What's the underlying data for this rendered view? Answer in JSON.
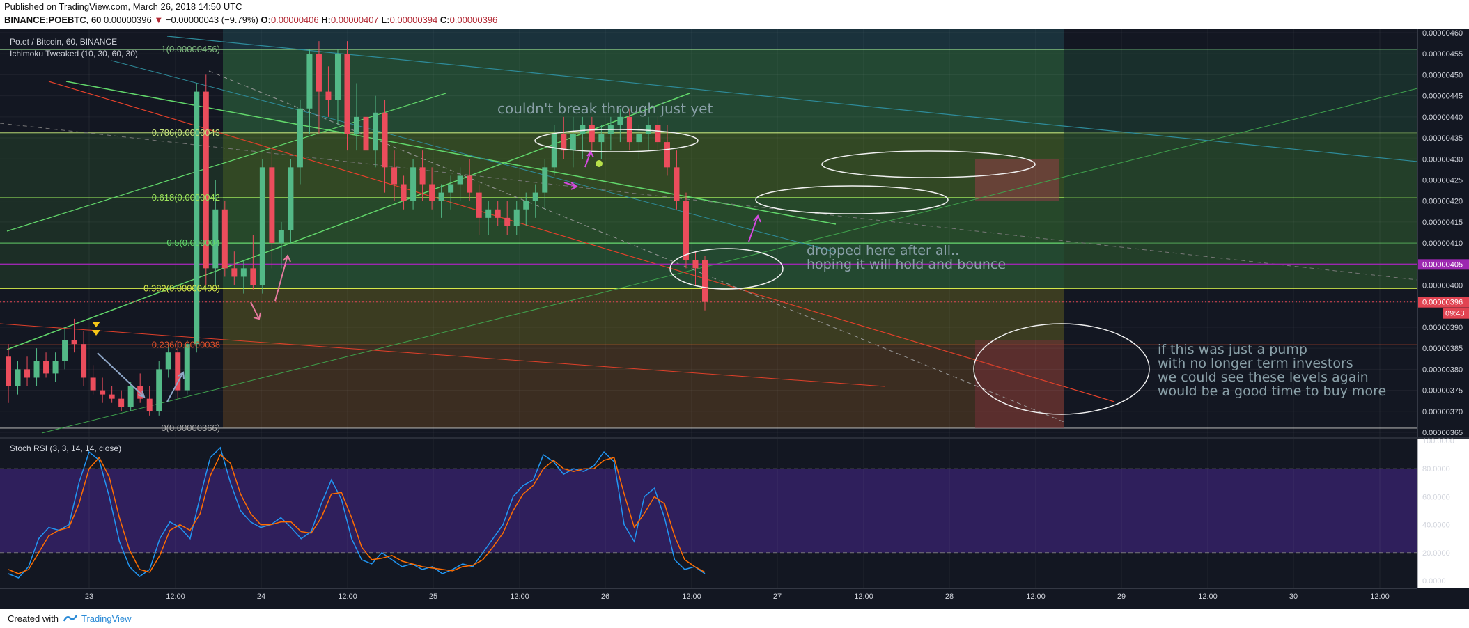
{
  "header": {
    "published": "Published on TradingView.com, March 26, 2018 14:50 UTC",
    "symbol": "BINANCE:POEBTC, 60",
    "last": "0.00000396",
    "change_arrow": "▼",
    "change": "−0.00000043 (−9.79%)",
    "open_label": "O:",
    "open": "0.00000406",
    "high_label": "H:",
    "high": "0.00000407",
    "low_label": "L:",
    "low": "0.00000394",
    "close_label": "C:",
    "close": "0.00000396"
  },
  "main_pane": {
    "title": "Po.et / Bitcoin, 60, BINANCE",
    "indicator": "Ichimoku Tweaked (10, 30, 60, 30)",
    "price_ticks": [
      "0.00000460",
      "0.00000455",
      "0.00000450",
      "0.00000445",
      "0.00000440",
      "0.00000435",
      "0.00000430",
      "0.00000425",
      "0.00000420",
      "0.00000415",
      "0.00000410",
      "0.00000405",
      "0.00000400",
      "0.00000396",
      "0.00000390",
      "0.00000385",
      "0.00000380",
      "0.00000375",
      "0.00000370",
      "0.00000365"
    ],
    "price_tick_values": [
      460,
      455,
      450,
      445,
      440,
      435,
      430,
      425,
      420,
      415,
      410,
      405,
      400,
      396,
      390,
      385,
      380,
      375,
      370,
      365
    ],
    "current_price_label": "0.00000396",
    "countdown_label": "09:43",
    "level_label_405": "0.00000405",
    "fib_levels": [
      {
        "label": "1(0.00000456)",
        "value": 456,
        "color": "#7fb97f"
      },
      {
        "label": "0.786(0.0000043",
        "value": 436.2,
        "color": "#c2e07a"
      },
      {
        "label": "0.618(0.0000042",
        "value": 420.8,
        "color": "#9be35b"
      },
      {
        "label": "0.5(0.000004",
        "value": 410,
        "color": "#62d86b"
      },
      {
        "label": "0.382(0.00000400)",
        "value": 399.2,
        "color": "#d6e84a"
      },
      {
        "label": "0.236(0.0000038",
        "value": 385.8,
        "color": "#e0502a"
      },
      {
        "label": "0(0.00000366)",
        "value": 366,
        "color": "#a8a8a8"
      }
    ],
    "annotations": {
      "break_text": "couldn't break through just yet",
      "dropped_line1": "dropped here after all..",
      "dropped_line2": "hoping it will hold and bounce",
      "pump_line1": "if this was just a pump",
      "pump_line2": "with no longer term investors",
      "pump_line3": "we could see these levels again",
      "pump_line4": "would be a good time to buy more"
    }
  },
  "rsi_pane": {
    "title": "Stoch RSI (3, 3, 14, 14, close)",
    "ticks": [
      "100.0000",
      "80.0000",
      "60.0000",
      "40.0000",
      "20.0000",
      "0.0000"
    ],
    "tick_values": [
      100,
      80,
      60,
      40,
      20,
      0
    ]
  },
  "time_axis": {
    "labels": [
      "23",
      "12:00",
      "24",
      "12:00",
      "25",
      "12:00",
      "26",
      "12:00",
      "27",
      "12:00",
      "28",
      "12:00",
      "29",
      "12:00",
      "30",
      "12:00"
    ]
  },
  "footer": {
    "created_with": "Created with",
    "brand": "TradingView"
  },
  "colors": {
    "background": "#131722",
    "bull": "#53b987",
    "bear": "#eb4d5c",
    "rsi_k": "#2196f3",
    "rsi_d": "#ff6d00",
    "rsi_band": "#2f1f5c",
    "level_405": "#9c27b0",
    "price_label_bg": "#e14452"
  },
  "chart_data": {
    "type": "candlestick",
    "candles_ohlc": [
      [
        383,
        386,
        372,
        376
      ],
      [
        376,
        382,
        374,
        380
      ],
      [
        380,
        383,
        376,
        378
      ],
      [
        378,
        385,
        376,
        382
      ],
      [
        382,
        384,
        378,
        379
      ],
      [
        379,
        384,
        377,
        382
      ],
      [
        382,
        390,
        380,
        387
      ],
      [
        387,
        392,
        384,
        386
      ],
      [
        386,
        389,
        376,
        378
      ],
      [
        378,
        381,
        374,
        375
      ],
      [
        375,
        378,
        372,
        374
      ],
      [
        374,
        376,
        372,
        373
      ],
      [
        373,
        375,
        370,
        371
      ],
      [
        371,
        377,
        370,
        376
      ],
      [
        376,
        379,
        372,
        373
      ],
      [
        373,
        376,
        369,
        370
      ],
      [
        370,
        382,
        369,
        380
      ],
      [
        380,
        386,
        378,
        384
      ],
      [
        384,
        387,
        373,
        375
      ],
      [
        375,
        387,
        374,
        386
      ],
      [
        386,
        448,
        384,
        446
      ],
      [
        446,
        450,
        400,
        404
      ],
      [
        404,
        425,
        400,
        418
      ],
      [
        418,
        420,
        402,
        404
      ],
      [
        404,
        408,
        400,
        402
      ],
      [
        402,
        406,
        398,
        404
      ],
      [
        404,
        412,
        399,
        400
      ],
      [
        400,
        430,
        398,
        428
      ],
      [
        428,
        432,
        404,
        410
      ],
      [
        410,
        415,
        404,
        413
      ],
      [
        413,
        430,
        410,
        428
      ],
      [
        428,
        444,
        424,
        442
      ],
      [
        442,
        456,
        436,
        455
      ],
      [
        455,
        458,
        436,
        446
      ],
      [
        446,
        452,
        440,
        444
      ],
      [
        444,
        456,
        438,
        455
      ],
      [
        455,
        458,
        432,
        436
      ],
      [
        436,
        448,
        432,
        440
      ],
      [
        440,
        444,
        428,
        432
      ],
      [
        432,
        445,
        428,
        441
      ],
      [
        441,
        444,
        422,
        428
      ],
      [
        428,
        432,
        420,
        424
      ],
      [
        424,
        426,
        418,
        420
      ],
      [
        420,
        430,
        418,
        428
      ],
      [
        428,
        432,
        420,
        424
      ],
      [
        424,
        428,
        418,
        420
      ],
      [
        420,
        424,
        416,
        422
      ],
      [
        422,
        426,
        418,
        424
      ],
      [
        424,
        428,
        420,
        426
      ],
      [
        426,
        430,
        420,
        422
      ],
      [
        422,
        424,
        412,
        416
      ],
      [
        416,
        420,
        412,
        418
      ],
      [
        418,
        420,
        414,
        416
      ],
      [
        416,
        420,
        412,
        414
      ],
      [
        414,
        420,
        412,
        418
      ],
      [
        418,
        422,
        414,
        420
      ],
      [
        420,
        424,
        416,
        422
      ],
      [
        422,
        430,
        418,
        428
      ],
      [
        428,
        438,
        426,
        436
      ],
      [
        436,
        440,
        430,
        432
      ],
      [
        432,
        440,
        428,
        436
      ],
      [
        436,
        440,
        430,
        438
      ],
      [
        438,
        440,
        432,
        434
      ],
      [
        434,
        438,
        430,
        436
      ],
      [
        436,
        440,
        432,
        438
      ],
      [
        438,
        442,
        434,
        440
      ],
      [
        440,
        442,
        432,
        434
      ],
      [
        434,
        438,
        430,
        436
      ],
      [
        436,
        440,
        432,
        438
      ],
      [
        438,
        440,
        432,
        434
      ],
      [
        434,
        438,
        426,
        428
      ],
      [
        428,
        432,
        418,
        420
      ],
      [
        420,
        422,
        404,
        406
      ],
      [
        406,
        408,
        400,
        404
      ],
      [
        406,
        407,
        394,
        396
      ]
    ],
    "rsi_k": [
      5,
      2,
      10,
      30,
      38,
      36,
      40,
      70,
      92,
      86,
      60,
      28,
      10,
      3,
      8,
      30,
      42,
      38,
      30,
      60,
      88,
      95,
      70,
      50,
      42,
      38,
      40,
      45,
      38,
      30,
      35,
      55,
      72,
      58,
      30,
      15,
      12,
      20,
      15,
      10,
      12,
      8,
      10,
      5,
      8,
      12,
      10,
      20,
      30,
      40,
      60,
      68,
      72,
      90,
      85,
      76,
      80,
      78,
      82,
      92,
      85,
      40,
      28,
      60,
      66,
      45,
      15,
      8,
      10,
      5
    ],
    "rsi_d": [
      8,
      5,
      8,
      20,
      32,
      36,
      38,
      55,
      80,
      88,
      74,
      45,
      22,
      8,
      6,
      18,
      36,
      40,
      36,
      48,
      75,
      90,
      84,
      62,
      48,
      40,
      40,
      42,
      42,
      35,
      34,
      45,
      62,
      63,
      45,
      24,
      15,
      16,
      18,
      14,
      12,
      10,
      9,
      8,
      7,
      10,
      11,
      15,
      24,
      34,
      50,
      62,
      68,
      80,
      86,
      80,
      78,
      80,
      80,
      86,
      88,
      62,
      38,
      48,
      60,
      55,
      32,
      15,
      10,
      6
    ]
  }
}
